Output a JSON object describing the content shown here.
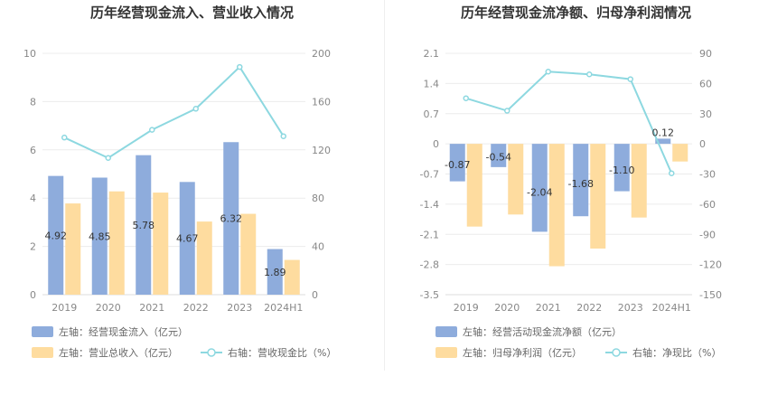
{
  "chart_data": [
    {
      "type": "bar",
      "title": "历年经营现金流入、营业收入情况",
      "categories": [
        "2019",
        "2020",
        "2021",
        "2022",
        "2023",
        "2024H1"
      ],
      "left_axis": {
        "ylim": [
          0,
          10
        ],
        "ticks": [
          "0",
          "2",
          "4",
          "6",
          "8",
          "10"
        ]
      },
      "right_axis": {
        "ylim": [
          0,
          200
        ],
        "ticks": [
          "0",
          "40",
          "80",
          "120",
          "160",
          "200"
        ]
      },
      "series": [
        {
          "name": "左轴：经营现金流入（亿元）",
          "kind": "bar",
          "axis": "left",
          "color": "#8eacdc",
          "values": [
            4.92,
            4.85,
            5.78,
            4.67,
            6.32,
            1.89
          ],
          "labels": [
            "4.92",
            "4.85",
            "5.78",
            "4.67",
            "6.32",
            "1.89"
          ]
        },
        {
          "name": "左轴：营业总收入（亿元）",
          "kind": "bar",
          "axis": "left",
          "color": "#fedc9f",
          "values": [
            3.78,
            4.28,
            4.23,
            3.03,
            3.35,
            1.44
          ]
        },
        {
          "name": "右轴：营收现金比（%）",
          "kind": "line",
          "axis": "right",
          "color": "#8dd8e0",
          "values": [
            130.2,
            113.3,
            136.6,
            154.1,
            188.7,
            131.3
          ]
        }
      ],
      "legend_position": "bottom-left",
      "grid": true
    },
    {
      "type": "bar",
      "title": "历年经营现金流净额、归母净利润情况",
      "categories": [
        "2019",
        "2020",
        "2021",
        "2022",
        "2023",
        "2024H1"
      ],
      "left_axis": {
        "ylim": [
          -3.5,
          2.1
        ],
        "ticks": [
          "-3.5",
          "-2.8",
          "-2.1",
          "-1.4",
          "-0.7",
          "0",
          "0.7",
          "1.4",
          "2.1"
        ]
      },
      "right_axis": {
        "ylim": [
          -150,
          90
        ],
        "ticks": [
          "-150",
          "-120",
          "-90",
          "-60",
          "-30",
          "0",
          "30",
          "60",
          "90"
        ]
      },
      "series": [
        {
          "name": "左轴：经营活动现金流净额（亿元）",
          "kind": "bar",
          "axis": "left",
          "color": "#8eacdc",
          "values": [
            -0.87,
            -0.54,
            -2.04,
            -1.68,
            -1.1,
            0.12
          ],
          "labels": [
            "-0.87",
            "-0.54",
            "-2.04",
            "-1.68",
            "-1.10",
            "0.12"
          ]
        },
        {
          "name": "左轴：归母净利润（亿元）",
          "kind": "bar",
          "axis": "left",
          "color": "#fedc9f",
          "values": [
            -1.92,
            -1.64,
            -2.84,
            -2.43,
            -1.71,
            -0.41
          ]
        },
        {
          "name": "右轴：净现比（%）",
          "kind": "line",
          "axis": "right",
          "color": "#8dd8e0",
          "values": [
            45.3,
            32.9,
            71.8,
            69.1,
            64.3,
            -29.3
          ]
        }
      ],
      "legend_position": "bottom-left",
      "grid": true
    }
  ]
}
